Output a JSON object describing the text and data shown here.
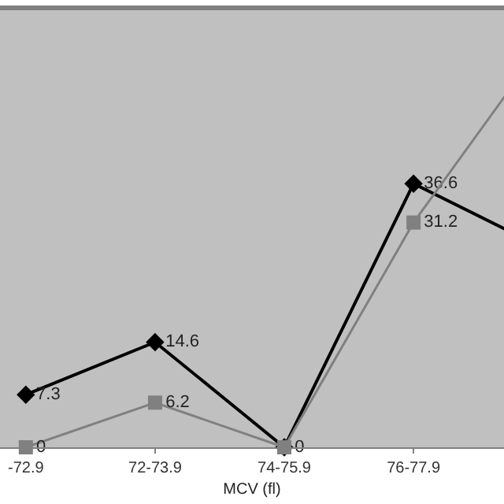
{
  "chart_data": {
    "type": "line",
    "xlabel": "MCV (fl)",
    "categories": [
      "-72.9",
      "72-73.9",
      "74-75.9",
      "76-77.9",
      null
    ],
    "ylim": [
      0,
      61
    ],
    "tick_labels": "x",
    "grid": false,
    "series": [
      {
        "color": "#000000",
        "marker": "diamond",
        "values": [
          7.3,
          14.6,
          0,
          36.6,
          27.7
        ],
        "value_labels": [
          "7.3",
          "14.6",
          null,
          "36.6",
          null
        ]
      },
      {
        "color": "#808080",
        "marker": "square",
        "values": [
          0,
          6.2,
          0,
          31.2,
          56
        ],
        "value_labels": [
          "0",
          "6.2",
          "0",
          "31.2",
          null
        ]
      }
    ]
  }
}
